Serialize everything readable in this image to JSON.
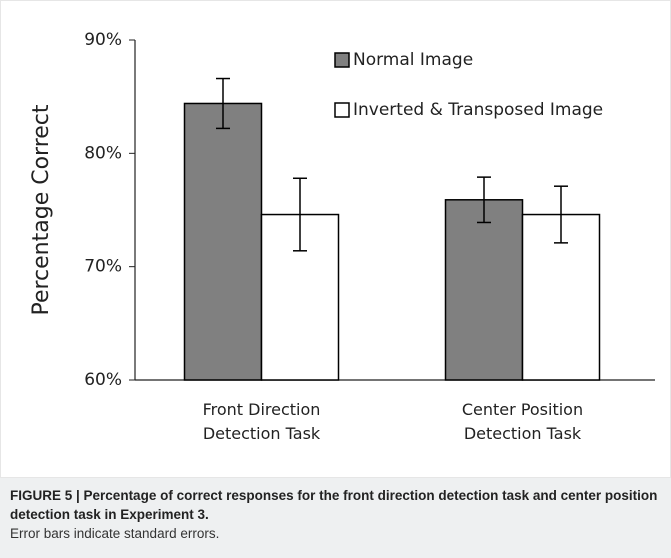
{
  "chart_data": {
    "type": "bar",
    "y_label": "Percentage Correct",
    "categories": [
      "Front Direction Detection Task",
      "Center Position Detection Task"
    ],
    "series": [
      {
        "name": "Normal Image",
        "color": "#808080",
        "values": [
          84.4,
          75.9
        ],
        "errors": [
          2.2,
          2.0
        ]
      },
      {
        "name": "Inverted & Transposed Image",
        "color": "#ffffff",
        "values": [
          74.6,
          74.6
        ],
        "errors": [
          3.2,
          2.5
        ]
      }
    ],
    "ylim": [
      60,
      90
    ],
    "yticks": [
      {
        "value": 60,
        "label": "60%"
      },
      {
        "value": 70,
        "label": "70%"
      },
      {
        "value": 80,
        "label": "80%"
      },
      {
        "value": 90,
        "label": "90%"
      }
    ],
    "legend": "top-right"
  },
  "caption": {
    "title": "FIGURE 5 | Percentage of correct responses for the front direction detection task and center position detection task in Experiment 3.",
    "note": "Error bars indicate standard errors."
  }
}
